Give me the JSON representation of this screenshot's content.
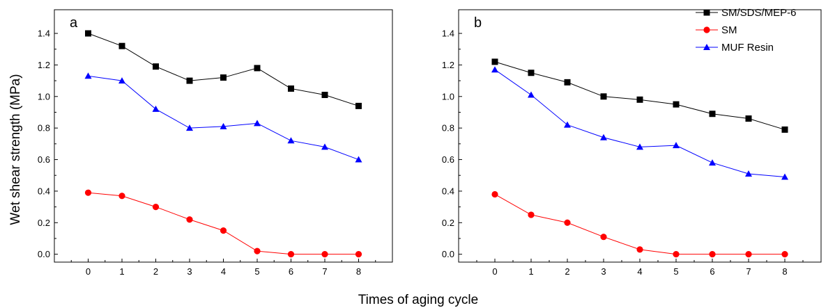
{
  "chart_data": [
    {
      "type": "line",
      "panel_label": "a",
      "x": [
        0,
        1,
        2,
        3,
        4,
        5,
        6,
        7,
        8
      ],
      "xlim": [
        -1,
        9
      ],
      "ylim": [
        -0.05,
        1.55
      ],
      "xticks": [
        0,
        1,
        2,
        3,
        4,
        5,
        6,
        7,
        8
      ],
      "yticks": [
        0.0,
        0.2,
        0.4,
        0.6,
        0.8,
        1.0,
        1.2,
        1.4
      ],
      "series": [
        {
          "name": "SM/SDS/MEP-6",
          "color": "#000000",
          "marker": "square",
          "values": [
            1.4,
            1.32,
            1.19,
            1.1,
            1.12,
            1.18,
            1.05,
            1.01,
            0.94
          ]
        },
        {
          "name": "SM",
          "color": "#ff0000",
          "marker": "circle",
          "values": [
            0.39,
            0.37,
            0.3,
            0.22,
            0.15,
            0.02,
            0.0,
            0.0,
            0.0
          ]
        },
        {
          "name": "MUF Resin",
          "color": "#0000ff",
          "marker": "triangle",
          "values": [
            1.13,
            1.1,
            0.92,
            0.8,
            0.81,
            0.83,
            0.72,
            0.68,
            0.6
          ]
        }
      ]
    },
    {
      "type": "line",
      "panel_label": "b",
      "x": [
        0,
        1,
        2,
        3,
        4,
        5,
        6,
        7,
        8
      ],
      "xlim": [
        -1,
        9
      ],
      "ylim": [
        -0.05,
        1.55
      ],
      "xticks": [
        0,
        1,
        2,
        3,
        4,
        5,
        6,
        7,
        8
      ],
      "yticks": [
        0.0,
        0.2,
        0.4,
        0.6,
        0.8,
        1.0,
        1.2,
        1.4
      ],
      "series": [
        {
          "name": "SM/SDS/MEP-6",
          "color": "#000000",
          "marker": "square",
          "values": [
            1.22,
            1.15,
            1.09,
            1.0,
            0.98,
            0.95,
            0.89,
            0.86,
            0.79
          ]
        },
        {
          "name": "SM",
          "color": "#ff0000",
          "marker": "circle",
          "values": [
            0.38,
            0.25,
            0.2,
            0.11,
            0.03,
            0.0,
            0.0,
            0.0,
            0.0
          ]
        },
        {
          "name": "MUF Resin",
          "color": "#0000ff",
          "marker": "triangle",
          "values": [
            1.17,
            1.01,
            0.82,
            0.74,
            0.68,
            0.69,
            0.58,
            0.51,
            0.49
          ]
        }
      ]
    }
  ],
  "labels": {
    "xlabel": "Times of aging cycle",
    "ylabel": "Wet shear strength (MPa)"
  },
  "legend": {
    "placement": "top-right",
    "items": [
      {
        "label": "SM/SDS/MEP-6"
      },
      {
        "label": "SM"
      },
      {
        "label": "MUF Resin"
      }
    ]
  }
}
